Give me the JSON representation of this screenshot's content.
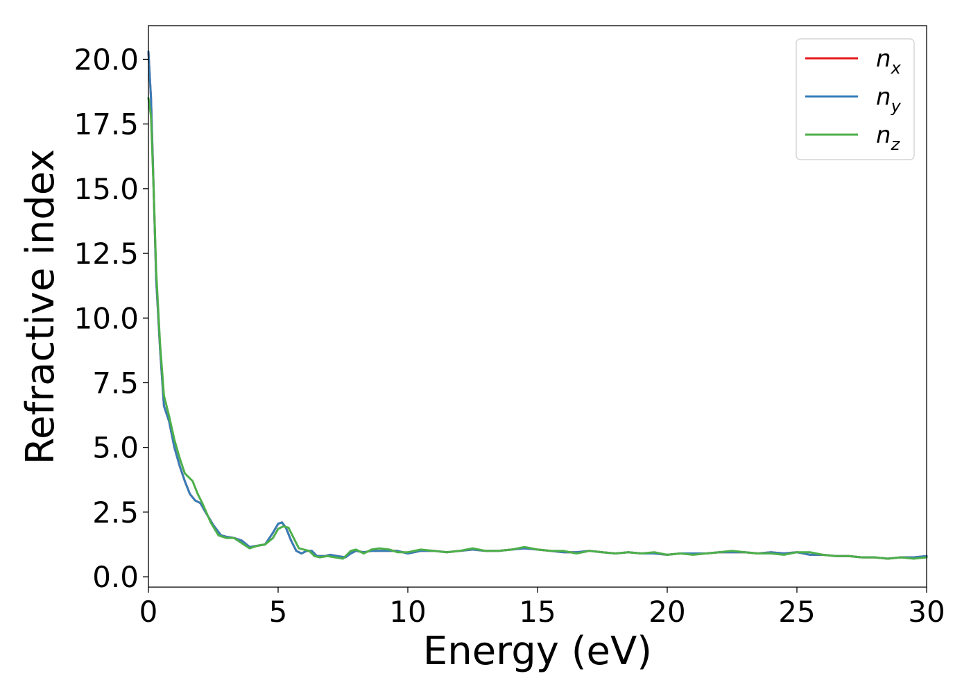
{
  "chart_data": {
    "type": "line",
    "xlabel": "Energy (eV)",
    "ylabel": "Refractive index",
    "xlim": [
      0,
      30
    ],
    "ylim": [
      -0.4,
      21.3
    ],
    "xticks": [
      0,
      5,
      10,
      15,
      20,
      25,
      30
    ],
    "yticks": [
      0.0,
      2.5,
      5.0,
      7.5,
      10.0,
      12.5,
      15.0,
      17.5,
      20.0
    ],
    "grid": false,
    "legend_position": "top-right",
    "series": [
      {
        "name": "n_x",
        "label_main": "n",
        "label_sub": "x",
        "color": "#e41a1c",
        "x": [
          0,
          0.1,
          0.2,
          0.3,
          0.45,
          0.6,
          0.8,
          1.0,
          1.2,
          1.4,
          1.6,
          1.8,
          2.0,
          2.2,
          2.5,
          2.8,
          3.0,
          3.3,
          3.6,
          3.9,
          4.2,
          4.5,
          4.8,
          5.0,
          5.15,
          5.3,
          5.5,
          5.7,
          5.9,
          6.1,
          6.3,
          6.5,
          6.8,
          7.0,
          7.3,
          7.6,
          7.8,
          8.0,
          8.3,
          8.6,
          9.0,
          9.3,
          9.6,
          10.0,
          10.5,
          11.0,
          11.5,
          12.0,
          12.5,
          13.0,
          13.5,
          14.0,
          14.5,
          15.0,
          15.5,
          16.0,
          16.5,
          17.0,
          17.5,
          18.0,
          18.5,
          19.0,
          19.5,
          20.0,
          20.5,
          21.0,
          21.5,
          22.0,
          22.5,
          23.0,
          23.5,
          24.0,
          24.5,
          25.0,
          25.5,
          26.0,
          26.5,
          27.0,
          27.5,
          28.0,
          28.5,
          29.0,
          29.5,
          30.0
        ],
        "y": [
          20.3,
          18.5,
          15.0,
          11.5,
          8.8,
          6.6,
          6.0,
          5.0,
          4.3,
          3.7,
          3.2,
          2.95,
          2.85,
          2.5,
          2.0,
          1.6,
          1.55,
          1.5,
          1.4,
          1.15,
          1.2,
          1.25,
          1.7,
          2.05,
          2.1,
          1.9,
          1.4,
          1.0,
          0.9,
          1.0,
          1.0,
          0.8,
          0.8,
          0.85,
          0.8,
          0.75,
          0.9,
          1.0,
          0.95,
          1.0,
          1.0,
          1.0,
          1.0,
          0.9,
          1.0,
          1.0,
          0.95,
          1.0,
          1.05,
          1.0,
          1.0,
          1.05,
          1.1,
          1.05,
          1.0,
          0.95,
          0.95,
          1.0,
          0.95,
          0.9,
          0.95,
          0.9,
          0.9,
          0.85,
          0.9,
          0.9,
          0.9,
          0.95,
          0.95,
          0.95,
          0.9,
          0.95,
          0.9,
          0.95,
          0.85,
          0.85,
          0.8,
          0.8,
          0.75,
          0.75,
          0.7,
          0.75,
          0.75,
          0.8
        ]
      },
      {
        "name": "n_y",
        "label_main": "n",
        "label_sub": "y",
        "color": "#377eb8",
        "x": [
          0,
          0.1,
          0.2,
          0.3,
          0.45,
          0.6,
          0.8,
          1.0,
          1.2,
          1.4,
          1.6,
          1.8,
          2.0,
          2.2,
          2.5,
          2.8,
          3.0,
          3.3,
          3.6,
          3.9,
          4.2,
          4.5,
          4.8,
          5.0,
          5.15,
          5.3,
          5.5,
          5.7,
          5.9,
          6.1,
          6.3,
          6.5,
          6.8,
          7.0,
          7.3,
          7.6,
          7.8,
          8.0,
          8.3,
          8.6,
          9.0,
          9.3,
          9.6,
          10.0,
          10.5,
          11.0,
          11.5,
          12.0,
          12.5,
          13.0,
          13.5,
          14.0,
          14.5,
          15.0,
          15.5,
          16.0,
          16.5,
          17.0,
          17.5,
          18.0,
          18.5,
          19.0,
          19.5,
          20.0,
          20.5,
          21.0,
          21.5,
          22.0,
          22.5,
          23.0,
          23.5,
          24.0,
          24.5,
          25.0,
          25.5,
          26.0,
          26.5,
          27.0,
          27.5,
          28.0,
          28.5,
          29.0,
          29.5,
          30.0
        ],
        "y": [
          20.3,
          18.5,
          15.0,
          11.5,
          8.8,
          6.6,
          6.0,
          5.0,
          4.3,
          3.7,
          3.2,
          2.95,
          2.85,
          2.5,
          2.0,
          1.6,
          1.55,
          1.5,
          1.4,
          1.15,
          1.2,
          1.25,
          1.7,
          2.05,
          2.1,
          1.9,
          1.4,
          1.0,
          0.9,
          1.0,
          1.0,
          0.8,
          0.8,
          0.85,
          0.8,
          0.75,
          0.9,
          1.0,
          0.95,
          1.0,
          1.0,
          1.0,
          1.0,
          0.9,
          1.0,
          1.0,
          0.95,
          1.0,
          1.05,
          1.0,
          1.0,
          1.05,
          1.1,
          1.05,
          1.0,
          0.95,
          0.95,
          1.0,
          0.95,
          0.9,
          0.95,
          0.9,
          0.9,
          0.85,
          0.9,
          0.9,
          0.9,
          0.95,
          0.95,
          0.95,
          0.9,
          0.95,
          0.9,
          0.95,
          0.85,
          0.85,
          0.8,
          0.8,
          0.75,
          0.75,
          0.7,
          0.75,
          0.75,
          0.8
        ]
      },
      {
        "name": "n_z",
        "label_main": "n",
        "label_sub": "z",
        "color": "#4daf4a",
        "x": [
          0,
          0.1,
          0.2,
          0.3,
          0.45,
          0.6,
          0.8,
          1.0,
          1.2,
          1.4,
          1.5,
          1.7,
          1.9,
          2.1,
          2.4,
          2.7,
          3.0,
          3.3,
          3.6,
          3.9,
          4.2,
          4.5,
          4.8,
          5.0,
          5.2,
          5.4,
          5.6,
          5.8,
          6.0,
          6.2,
          6.4,
          6.6,
          6.9,
          7.2,
          7.5,
          7.8,
          8.0,
          8.3,
          8.6,
          8.9,
          9.3,
          9.6,
          10.0,
          10.5,
          11.0,
          11.5,
          12.0,
          12.5,
          13.0,
          13.5,
          14.0,
          14.5,
          15.0,
          15.5,
          16.0,
          16.5,
          17.0,
          17.5,
          18.0,
          18.5,
          19.0,
          19.5,
          20.0,
          20.5,
          21.0,
          21.5,
          22.0,
          22.5,
          23.0,
          23.5,
          24.0,
          24.5,
          25.0,
          25.5,
          26.0,
          26.5,
          27.0,
          27.5,
          28.0,
          28.5,
          29.0,
          29.5,
          30.0
        ],
        "y": [
          18.5,
          17.8,
          15.0,
          11.8,
          9.0,
          7.0,
          6.2,
          5.3,
          4.6,
          4.0,
          3.9,
          3.7,
          3.2,
          2.8,
          2.1,
          1.6,
          1.5,
          1.5,
          1.3,
          1.1,
          1.2,
          1.25,
          1.5,
          1.85,
          1.95,
          1.9,
          1.5,
          1.1,
          1.05,
          1.0,
          0.8,
          0.75,
          0.8,
          0.75,
          0.7,
          1.0,
          1.05,
          0.9,
          1.05,
          1.1,
          1.05,
          0.95,
          0.95,
          1.05,
          1.0,
          0.95,
          1.0,
          1.1,
          1.0,
          1.0,
          1.05,
          1.15,
          1.05,
          1.0,
          1.0,
          0.9,
          1.0,
          0.95,
          0.9,
          0.95,
          0.9,
          0.95,
          0.85,
          0.9,
          0.85,
          0.9,
          0.95,
          1.0,
          0.95,
          0.9,
          0.9,
          0.85,
          0.95,
          0.95,
          0.85,
          0.8,
          0.8,
          0.75,
          0.75,
          0.7,
          0.75,
          0.7,
          0.75
        ]
      }
    ]
  }
}
